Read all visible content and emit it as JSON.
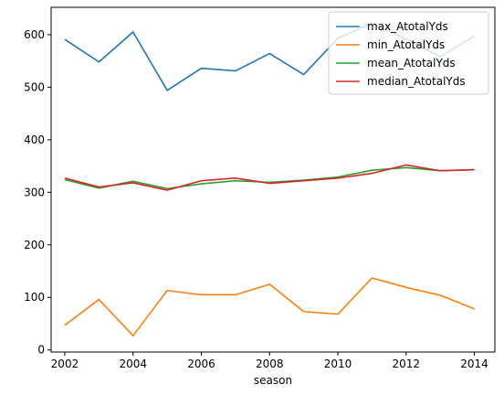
{
  "chart_data": {
    "type": "line",
    "title": "",
    "xlabel": "season",
    "ylabel": "",
    "x": [
      2002,
      2003,
      2004,
      2005,
      2006,
      2007,
      2008,
      2009,
      2010,
      2011,
      2012,
      2013,
      2014
    ],
    "xticks": [
      2002,
      2004,
      2006,
      2008,
      2010,
      2012,
      2014
    ],
    "yticks": [
      0,
      100,
      200,
      300,
      400,
      500,
      600
    ],
    "xlim": [
      2001.6,
      2014.6
    ],
    "ylim": [
      -4,
      652
    ],
    "grid": false,
    "legend_position": "top-right",
    "series": [
      {
        "name": "max_AtotalYds",
        "color": "#1f77b4",
        "values": [
          591,
          548,
          605,
          494,
          536,
          531,
          564,
          524,
          593,
          622,
          592,
          558,
          597
        ]
      },
      {
        "name": "min_AtotalYds",
        "color": "#ff7f0e",
        "values": [
          47,
          96,
          27,
          113,
          105,
          105,
          125,
          73,
          68,
          137,
          119,
          104,
          78
        ]
      },
      {
        "name": "mean_AtotalYds",
        "color": "#2ca02c",
        "values": [
          324,
          308,
          321,
          307,
          316,
          322,
          319,
          323,
          329,
          342,
          347,
          341,
          343
        ]
      },
      {
        "name": "median_AtotalYds",
        "color": "#d62728",
        "values": [
          327,
          310,
          318,
          304,
          322,
          327,
          317,
          322,
          327,
          336,
          352,
          341,
          343
        ]
      }
    ]
  }
}
